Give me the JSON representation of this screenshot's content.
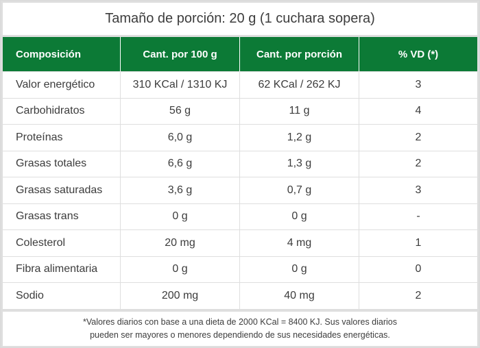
{
  "title": "Tamaño de porción: 20 g (1 cuchara sopera)",
  "table": {
    "headers": [
      "Composición",
      "Cant. por 100 g",
      "Cant. por porción",
      "% VD (*)"
    ],
    "rows": [
      [
        "Valor energético",
        "310 KCal / 1310 KJ",
        "62 KCal / 262 KJ",
        "3"
      ],
      [
        "Carbohidratos",
        "56 g",
        "11 g",
        "4"
      ],
      [
        "Proteínas",
        "6,0 g",
        "1,2 g",
        "2"
      ],
      [
        "Grasas totales",
        "6,6 g",
        "1,3 g",
        "2"
      ],
      [
        "Grasas saturadas",
        "3,6 g",
        "0,7 g",
        "3"
      ],
      [
        "Grasas trans",
        "0 g",
        "0 g",
        "-"
      ],
      [
        "Colesterol",
        "20 mg",
        "4 mg",
        "1"
      ],
      [
        "Fibra alimentaria",
        "0 g",
        "0 g",
        "0"
      ],
      [
        "Sodio",
        "200 mg",
        "40 mg",
        "2"
      ]
    ]
  },
  "footnote": {
    "line1": "*Valores diarios con base a una dieta de 2000 KCal = 8400 KJ. Sus valores diarios",
    "line2": "pueden ser mayores o menores dependiendo de sus necesidades energéticas."
  },
  "colors": {
    "header_bg": "#0c7a36",
    "border": "#dedede"
  }
}
